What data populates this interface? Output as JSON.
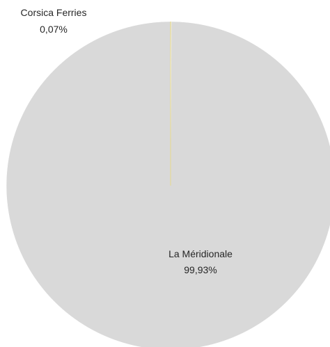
{
  "chart_data": {
    "type": "pie",
    "slices": [
      {
        "name": "Corsica Ferries",
        "value": 0.07,
        "value_label": "0,07%",
        "color": "#e6d98a"
      },
      {
        "name": "La Méridionale",
        "value": 99.93,
        "value_label": "99,93%",
        "color": "#d9d9d9"
      }
    ],
    "title": "",
    "legend": "none",
    "data_labels": "category-and-percentage"
  }
}
